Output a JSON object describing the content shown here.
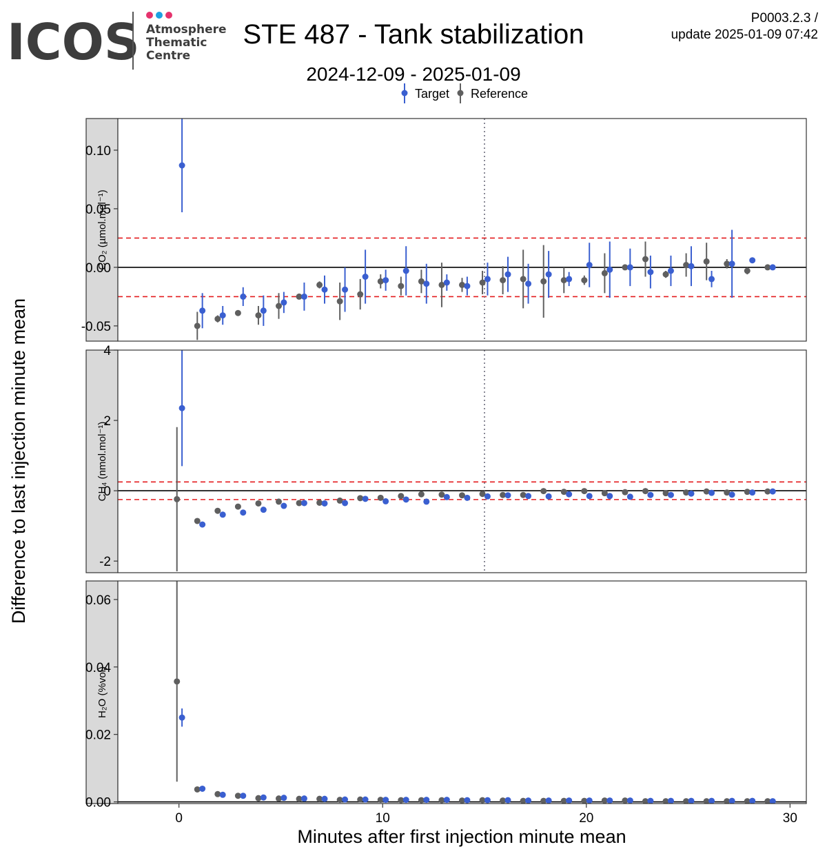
{
  "header": {
    "logo_text": "ICOS",
    "logo_sub": [
      "Atmosphere",
      "Thematic",
      "Centre"
    ],
    "title": "STE 487 - Tank stabilization",
    "subtitle": "2024-12-09 - 2025-01-09",
    "version": "P0003.2.3 /",
    "update": "update  2025-01-09 07:42"
  },
  "colors": {
    "target": "#3a5fd0",
    "reference": "#5f5f5f",
    "threshold": "#e41a1c",
    "strip_bg": "#d9d9d9",
    "logo_dots": [
      "#e5336d",
      "#1da1e2",
      "#e5336d"
    ],
    "logo_text": "#3d3d3d"
  },
  "chart_data": {
    "type": "scatter",
    "legend": {
      "position": "top",
      "entries": [
        "Target",
        "Reference"
      ]
    },
    "xlabel": "Minutes after first injection minute mean",
    "ylabel": "Difference to last injection minute mean",
    "xlim": [
      -3,
      30.8
    ],
    "xticks": [
      0,
      10,
      20,
      30
    ],
    "vline_x": 15,
    "panels": [
      {
        "strip": "CO₂ (µmol.mol⁻¹)",
        "ylim": [
          -0.063,
          0.127
        ],
        "yticks": [
          -0.05,
          0.0,
          0.05,
          0.1
        ],
        "ytick_labels": [
          "-0.05",
          "0.00",
          "0.05",
          "0.10"
        ],
        "thresholds": [
          0.025,
          -0.025
        ],
        "show_vline": true,
        "reference": {
          "x": [
            0.9,
            1.9,
            2.9,
            3.9,
            4.9,
            5.9,
            6.9,
            7.9,
            8.9,
            9.9,
            10.9,
            11.9,
            12.9,
            13.9,
            14.9,
            15.9,
            16.9,
            17.9,
            18.9,
            19.9,
            20.9,
            21.9,
            22.9,
            23.9,
            24.9,
            25.9,
            26.9,
            27.9,
            28.9
          ],
          "y": [
            -0.05,
            -0.044,
            -0.039,
            -0.041,
            -0.033,
            -0.025,
            -0.015,
            -0.029,
            -0.023,
            -0.012,
            -0.016,
            -0.012,
            -0.015,
            -0.015,
            -0.013,
            -0.011,
            -0.01,
            -0.012,
            -0.011,
            -0.011,
            -0.005,
            0.0,
            0.007,
            -0.006,
            0.002,
            0.005,
            0.003,
            -0.003,
            0.0
          ],
          "err": [
            0.012,
            0.003,
            0.002,
            0.008,
            0.011,
            0.002,
            0.003,
            0.016,
            0.013,
            0.006,
            0.008,
            0.01,
            0.019,
            0.006,
            0.01,
            0.012,
            0.025,
            0.031,
            0.011,
            0.004,
            0.017,
            0.002,
            0.015,
            0.003,
            0.01,
            0.016,
            0.004,
            0.003,
            0.002
          ]
        },
        "target": {
          "x": [
            0.15,
            1.15,
            2.15,
            3.15,
            4.15,
            5.15,
            6.15,
            7.15,
            8.15,
            9.15,
            10.15,
            11.15,
            12.15,
            13.15,
            14.15,
            15.15,
            16.15,
            17.15,
            18.15,
            19.15,
            20.15,
            21.15,
            22.15,
            23.15,
            24.15,
            25.15,
            26.15,
            27.15,
            28.15,
            29.15
          ],
          "y": [
            0.087,
            -0.037,
            -0.041,
            -0.025,
            -0.037,
            -0.03,
            -0.025,
            -0.019,
            -0.019,
            -0.008,
            -0.011,
            -0.003,
            -0.014,
            -0.013,
            -0.016,
            -0.01,
            -0.006,
            -0.014,
            -0.006,
            -0.01,
            0.002,
            -0.002,
            0.0,
            -0.004,
            -0.003,
            0.001,
            -0.01,
            0.003,
            0.006,
            0.0
          ],
          "err": [
            0.04,
            0.015,
            0.008,
            0.008,
            0.013,
            0.009,
            0.012,
            0.012,
            0.019,
            0.023,
            0.009,
            0.021,
            0.017,
            0.007,
            0.008,
            0.014,
            0.015,
            0.017,
            0.02,
            0.006,
            0.019,
            0.024,
            0.016,
            0.014,
            0.013,
            0.017,
            0.007,
            0.029,
            0.002,
            0.002
          ]
        }
      },
      {
        "strip": "CH₄ (nmol.mol⁻¹)",
        "ylim": [
          -2.33,
          4.0
        ],
        "yticks": [
          -2,
          0,
          2,
          4
        ],
        "ytick_labels": [
          "-2",
          "0",
          "2",
          "4"
        ],
        "thresholds": [
          0.25,
          -0.25
        ],
        "show_vline": true,
        "reference": {
          "x": [
            -0.1,
            0.9,
            1.9,
            2.9,
            3.9,
            4.9,
            5.9,
            6.9,
            7.9,
            8.9,
            9.9,
            10.9,
            11.9,
            12.9,
            13.9,
            14.9,
            15.9,
            16.9,
            17.9,
            18.9,
            19.9,
            20.9,
            21.9,
            22.9,
            23.9,
            24.9,
            25.9,
            26.9,
            27.9,
            28.9
          ],
          "y": [
            -0.24,
            -0.86,
            -0.57,
            -0.45,
            -0.36,
            -0.31,
            -0.35,
            -0.34,
            -0.28,
            -0.21,
            -0.2,
            -0.15,
            -0.1,
            -0.11,
            -0.13,
            -0.09,
            -0.12,
            -0.12,
            -0.01,
            -0.03,
            -0.01,
            -0.07,
            -0.04,
            -0.01,
            -0.07,
            -0.05,
            -0.02,
            -0.05,
            -0.03,
            -0.02
          ],
          "err": [
            2.05,
            0.03,
            0.02,
            0.02,
            0.02,
            0.02,
            0.02,
            0.02,
            0.02,
            0.02,
            0.02,
            0.02,
            0.02,
            0.02,
            0.02,
            0.02,
            0.02,
            0.02,
            0.02,
            0.02,
            0.02,
            0.02,
            0.02,
            0.02,
            0.02,
            0.02,
            0.02,
            0.02,
            0.02,
            0.02
          ]
        },
        "target": {
          "x": [
            0.15,
            1.15,
            2.15,
            3.15,
            4.15,
            5.15,
            6.15,
            7.15,
            8.15,
            9.15,
            10.15,
            11.15,
            12.15,
            13.15,
            14.15,
            15.15,
            16.15,
            17.15,
            18.15,
            19.15,
            20.15,
            21.15,
            22.15,
            23.15,
            24.15,
            25.15,
            26.15,
            27.15,
            28.15,
            29.15
          ],
          "y": [
            2.35,
            -0.96,
            -0.68,
            -0.62,
            -0.54,
            -0.43,
            -0.35,
            -0.36,
            -0.35,
            -0.23,
            -0.3,
            -0.25,
            -0.31,
            -0.18,
            -0.2,
            -0.16,
            -0.13,
            -0.15,
            -0.16,
            -0.1,
            -0.15,
            -0.15,
            -0.17,
            -0.12,
            -0.12,
            -0.08,
            -0.06,
            -0.11,
            -0.05,
            -0.02
          ],
          "err": [
            1.65,
            0.03,
            0.03,
            0.02,
            0.02,
            0.02,
            0.02,
            0.02,
            0.02,
            0.02,
            0.02,
            0.02,
            0.02,
            0.02,
            0.02,
            0.02,
            0.02,
            0.02,
            0.02,
            0.02,
            0.02,
            0.02,
            0.02,
            0.02,
            0.02,
            0.02,
            0.02,
            0.02,
            0.02,
            0.02
          ]
        }
      },
      {
        "strip": "H₂O (%vol)",
        "ylim": [
          -0.0005,
          0.0655
        ],
        "yticks": [
          0.0,
          0.02,
          0.04,
          0.06
        ],
        "ytick_labels": [
          "0.00",
          "0.02",
          "0.04",
          "0.06"
        ],
        "thresholds": [],
        "show_vline": false,
        "reference": {
          "x": [
            -0.1,
            0.9,
            1.9,
            2.9,
            3.9,
            4.9,
            5.9,
            6.9,
            7.9,
            8.9,
            9.9,
            10.9,
            11.9,
            12.9,
            13.9,
            14.9,
            15.9,
            16.9,
            17.9,
            18.9,
            19.9,
            20.9,
            21.9,
            22.9,
            23.9,
            24.9,
            25.9,
            26.9,
            27.9,
            28.9
          ],
          "y": [
            0.0357,
            0.0037,
            0.0023,
            0.0018,
            0.0011,
            0.001,
            0.0009,
            0.0009,
            0.0006,
            0.0007,
            0.0006,
            0.0005,
            0.0005,
            0.0005,
            0.0004,
            0.0005,
            0.0004,
            0.0003,
            0.0003,
            0.0003,
            0.0003,
            0.0004,
            0.0004,
            0.0002,
            0.0002,
            0.0002,
            0.0002,
            0.0002,
            0.0002,
            0.0002
          ],
          "err": [
            0.0297,
            0.0002,
            0.0002,
            0.0001,
            0.0001,
            0.0001,
            0.0001,
            0.0001,
            0.0001,
            0.0001,
            0.0001,
            0.0001,
            0.0001,
            0.0001,
            0.0001,
            0.0001,
            0.0001,
            0.0001,
            0.0001,
            0.0001,
            0.0001,
            0.0001,
            0.0001,
            0.0001,
            0.0001,
            0.0001,
            0.0001,
            0.0001,
            0.0001,
            0.0001
          ]
        },
        "target": {
          "x": [
            0.15,
            1.15,
            2.15,
            3.15,
            4.15,
            5.15,
            6.15,
            7.15,
            8.15,
            9.15,
            10.15,
            11.15,
            12.15,
            13.15,
            14.15,
            15.15,
            16.15,
            17.15,
            18.15,
            19.15,
            20.15,
            21.15,
            22.15,
            23.15,
            24.15,
            25.15,
            26.15,
            27.15,
            28.15,
            29.15
          ],
          "y": [
            0.025,
            0.0039,
            0.0021,
            0.0018,
            0.0013,
            0.0012,
            0.001,
            0.0009,
            0.0007,
            0.0007,
            0.0006,
            0.0006,
            0.0006,
            0.0006,
            0.0005,
            0.0005,
            0.0005,
            0.0004,
            0.0004,
            0.0004,
            0.0004,
            0.0004,
            0.0004,
            0.0003,
            0.0003,
            0.0003,
            0.0003,
            0.0003,
            0.0003,
            0.0002
          ],
          "err": [
            0.0027,
            0.0003,
            0.0002,
            0.0001,
            0.0001,
            0.0001,
            0.0001,
            0.0001,
            0.0001,
            0.0001,
            0.0001,
            0.0001,
            0.0001,
            0.0001,
            0.0001,
            0.0001,
            0.0001,
            0.0001,
            0.0001,
            0.0001,
            0.0001,
            0.0001,
            0.0001,
            0.0001,
            0.0001,
            0.0001,
            0.0001,
            0.0001,
            0.0001,
            0.0001
          ]
        }
      }
    ]
  }
}
